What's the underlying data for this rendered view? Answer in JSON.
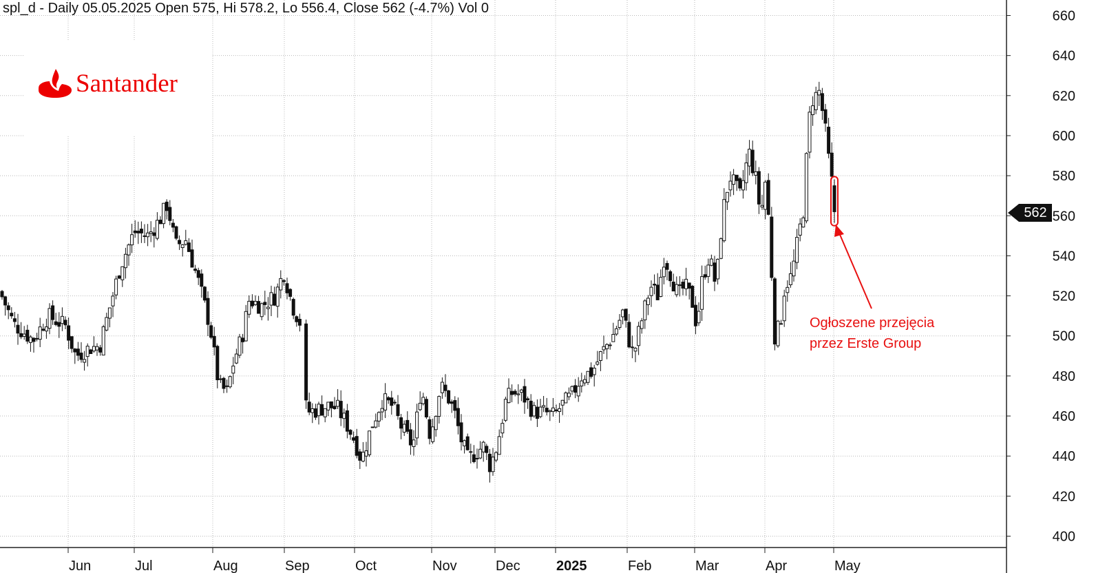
{
  "header": {
    "text": "spl_d - Daily 05.05.2025 Open 575, Hi 578.2, Lo 556.4, Close 562 (-4.7%) Vol 0"
  },
  "logo": {
    "brand": "Santander",
    "color": "#ec0000"
  },
  "annotation": {
    "line1": "Ogłoszene przejęcia",
    "line2": "przez Erste Group",
    "color": "#e81010"
  },
  "last_price_tag": "562",
  "chart_data": {
    "type": "ohlc",
    "symbol": "spl_d",
    "interval": "Daily",
    "y_axis": {
      "ticks": [
        400,
        420,
        440,
        460,
        480,
        500,
        520,
        540,
        560,
        580,
        600,
        620,
        640,
        660
      ],
      "range": [
        396,
        662
      ],
      "side": "right"
    },
    "x_axis": {
      "labels": [
        "Jun",
        "Jul",
        "Aug",
        "Sep",
        "Oct",
        "Nov",
        "Dec",
        "2025",
        "Feb",
        "Mar",
        "Apr",
        "May"
      ],
      "bold_label": "2025"
    },
    "grid": true,
    "last": {
      "date": "05.05.2025",
      "open": 575,
      "high": 578.2,
      "low": 556.4,
      "close": 562,
      "change_pct": -4.7,
      "volume": 0
    },
    "approx_close_path": [
      [
        0,
        522
      ],
      [
        20,
        506
      ],
      [
        48,
        498
      ],
      [
        70,
        510
      ],
      [
        95,
        505
      ],
      [
        110,
        490
      ],
      [
        130,
        494
      ],
      [
        145,
        495
      ],
      [
        160,
        515
      ],
      [
        175,
        535
      ],
      [
        195,
        552
      ],
      [
        215,
        550
      ],
      [
        232,
        558
      ],
      [
        243,
        566
      ],
      [
        255,
        545
      ],
      [
        270,
        548
      ],
      [
        290,
        525
      ],
      [
        305,
        505
      ],
      [
        318,
        475
      ],
      [
        330,
        472
      ],
      [
        340,
        488
      ],
      [
        352,
        500
      ],
      [
        362,
        518
      ],
      [
        380,
        515
      ],
      [
        400,
        520
      ],
      [
        412,
        532
      ],
      [
        425,
        515
      ],
      [
        438,
        505
      ],
      [
        445,
        462
      ],
      [
        460,
        463
      ],
      [
        475,
        465
      ],
      [
        490,
        464
      ],
      [
        505,
        455
      ],
      [
        515,
        448
      ],
      [
        525,
        438
      ],
      [
        540,
        455
      ],
      [
        555,
        468
      ],
      [
        570,
        465
      ],
      [
        585,
        453
      ],
      [
        600,
        445
      ],
      [
        612,
        475
      ],
      [
        625,
        450
      ],
      [
        640,
        475
      ],
      [
        650,
        470
      ],
      [
        660,
        462
      ],
      [
        670,
        448
      ],
      [
        680,
        438
      ],
      [
        692,
        442
      ],
      [
        702,
        445
      ],
      [
        712,
        435
      ],
      [
        722,
        445
      ],
      [
        735,
        468
      ],
      [
        745,
        472
      ],
      [
        760,
        470
      ],
      [
        775,
        462
      ],
      [
        790,
        462
      ],
      [
        805,
        460
      ],
      [
        815,
        465
      ],
      [
        830,
        470
      ],
      [
        845,
        480
      ],
      [
        860,
        482
      ],
      [
        875,
        492
      ],
      [
        890,
        500
      ],
      [
        905,
        512
      ],
      [
        912,
        500
      ],
      [
        920,
        490
      ],
      [
        930,
        505
      ],
      [
        945,
        525
      ],
      [
        955,
        520
      ],
      [
        965,
        540
      ],
      [
        975,
        530
      ],
      [
        985,
        520
      ],
      [
        995,
        525
      ],
      [
        1005,
        518
      ],
      [
        1012,
        505
      ],
      [
        1020,
        528
      ],
      [
        1030,
        540
      ],
      [
        1040,
        525
      ],
      [
        1050,
        562
      ],
      [
        1060,
        580
      ],
      [
        1075,
        570
      ],
      [
        1088,
        592
      ],
      [
        1098,
        578
      ],
      [
        1105,
        560
      ],
      [
        1112,
        578
      ],
      [
        1118,
        552
      ],
      [
        1125,
        500
      ],
      [
        1133,
        505
      ],
      [
        1140,
        525
      ],
      [
        1150,
        530
      ],
      [
        1160,
        550
      ],
      [
        1168,
        565
      ],
      [
        1174,
        605
      ],
      [
        1180,
        618
      ],
      [
        1190,
        622
      ],
      [
        1198,
        605
      ],
      [
        1203,
        590
      ],
      [
        1209,
        575
      ],
      [
        1214,
        562
      ]
    ]
  }
}
